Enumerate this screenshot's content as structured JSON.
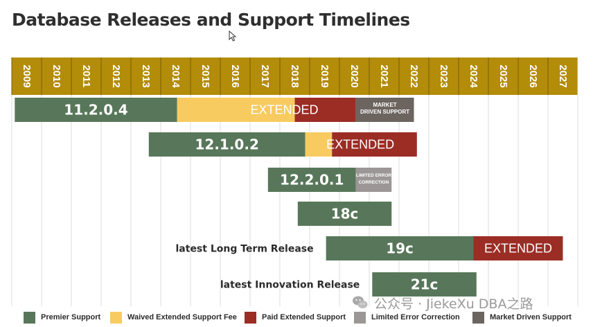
{
  "title": "Database Releases and Support Timelines",
  "colors": {
    "premier": "#58775a",
    "waived": "#f8cb61",
    "paid": "#9b2d25",
    "limited": "#9c9796",
    "market": "#6c645f",
    "header": "#b38c09",
    "grid": "#dedede"
  },
  "chart_data": {
    "type": "gantt",
    "x_axis": {
      "ticks": [
        "2009",
        "2010",
        "2011",
        "2012",
        "2013",
        "2014",
        "2015",
        "2016",
        "2017",
        "2018",
        "2019",
        "2020",
        "2021",
        "2022",
        "2023",
        "2024",
        "2025",
        "2026",
        "2027"
      ],
      "range": [
        2009,
        2028
      ]
    },
    "releases": [
      {
        "label": "11.2.0.4",
        "row_label": "",
        "segments": [
          {
            "type": "premier",
            "start": 2009.1,
            "end": 2014.55,
            "text": "11.2.0.4"
          },
          {
            "type": "waived",
            "start": 2014.55,
            "end": 2018.5,
            "text": ""
          },
          {
            "type": "paid",
            "start": 2018.5,
            "end": 2020.55,
            "text": ""
          },
          {
            "type": "market",
            "start": 2020.55,
            "end": 2022.5,
            "text": "MARKET DRIVEN SUPPORT"
          }
        ],
        "overlay_text": "EXTENDED",
        "overlay_at": 2018.15
      },
      {
        "label": "12.1.0.2",
        "row_label": "",
        "segments": [
          {
            "type": "premier",
            "start": 2013.6,
            "end": 2018.85,
            "text": "12.1.0.2"
          },
          {
            "type": "waived",
            "start": 2018.85,
            "end": 2019.75,
            "text": ""
          },
          {
            "type": "paid",
            "start": 2019.75,
            "end": 2022.6,
            "text": ""
          }
        ],
        "overlay_text": "EXTENDED",
        "overlay_at": 2020.7
      },
      {
        "label": "12.2.0.1",
        "row_label": "",
        "segments": [
          {
            "type": "premier",
            "start": 2017.6,
            "end": 2020.55,
            "text": "12.2.0.1"
          },
          {
            "type": "limited",
            "start": 2020.55,
            "end": 2021.75,
            "text": "LIMITED ERROR CORRECTION"
          }
        ],
        "overlay_text": "",
        "overlay_at": 0
      },
      {
        "label": "18c",
        "row_label": "",
        "segments": [
          {
            "type": "premier",
            "start": 2018.6,
            "end": 2021.75,
            "text": "18c"
          }
        ],
        "overlay_text": "",
        "overlay_at": 0
      },
      {
        "label": "19c",
        "row_label": "latest Long Term Release",
        "segments": [
          {
            "type": "premier",
            "start": 2019.55,
            "end": 2024.5,
            "text": "19c"
          },
          {
            "type": "paid",
            "start": 2024.5,
            "end": 2027.5,
            "text": "EXTENDED"
          }
        ],
        "overlay_text": "",
        "overlay_at": 0
      },
      {
        "label": "21c",
        "row_label": "latest Innovation Release",
        "segments": [
          {
            "type": "premier",
            "start": 2021.1,
            "end": 2024.6,
            "text": "21c"
          }
        ],
        "overlay_text": "",
        "overlay_at": 0
      }
    ],
    "legend": [
      {
        "type": "premier",
        "label": "Premier Support"
      },
      {
        "type": "waived",
        "label": "Waived Extended Support Fee"
      },
      {
        "type": "paid",
        "label": "Paid Extended Support"
      },
      {
        "type": "limited",
        "label": "Limited Error Correction"
      },
      {
        "type": "market",
        "label": "Market Driven Support"
      }
    ]
  },
  "watermark": "公众号 · JiekeXu DBA之路"
}
